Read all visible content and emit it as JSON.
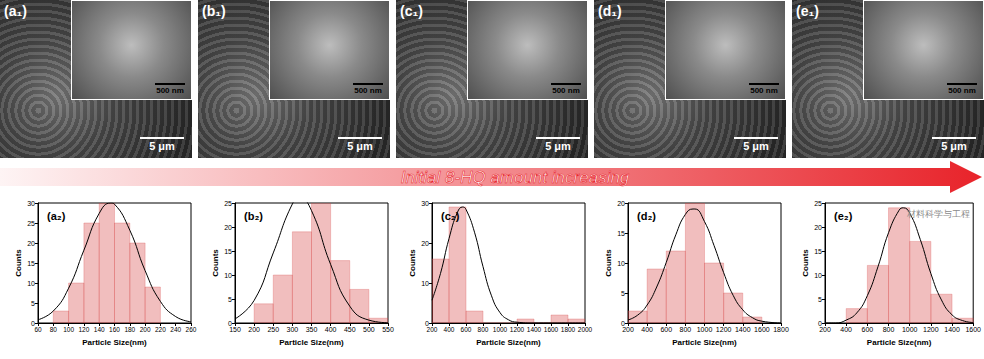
{
  "sem_images": [
    {
      "label": "(a₁)",
      "inset_scale_bar": "500 nm",
      "scale_bar": "5 μm"
    },
    {
      "label": "(b₁)",
      "inset_scale_bar": "500 nm",
      "scale_bar": "5 μm"
    },
    {
      "label": "(c₁)",
      "inset_scale_bar": "500 nm",
      "scale_bar": "5 μm"
    },
    {
      "label": "(d₁)",
      "inset_scale_bar": "500 nm",
      "scale_bar": "5 μm"
    },
    {
      "label": "(e₁)",
      "inset_scale_bar": "500 nm",
      "scale_bar": "5 μm"
    }
  ],
  "banner": {
    "text": "Initial 8-HQ amount increasing",
    "color": "#e8232a"
  },
  "watermark": "材料科学与工程",
  "chart_data": [
    {
      "type": "histogram",
      "title": "(a₂)",
      "x_label": "Particle Size(nm)",
      "y_label": "Counts",
      "bins": [
        80,
        100,
        120,
        140,
        160,
        180,
        200,
        220
      ],
      "counts": [
        3,
        10,
        25,
        30,
        25,
        20,
        9
      ],
      "color": "#d64545",
      "grid": false,
      "xlim": [
        60,
        260
      ],
      "xticks": [
        60,
        80,
        100,
        120,
        140,
        160,
        180,
        200,
        220,
        240,
        260
      ],
      "ylim": [
        0,
        30
      ],
      "yticks": [
        0,
        5,
        10,
        15,
        20,
        25,
        30
      ],
      "fit": {
        "color": "#000000",
        "x": [
          60,
          80,
          100,
          120,
          140,
          155,
          160,
          180,
          200,
          220,
          240,
          260
        ],
        "y": [
          0.8,
          3.0,
          8.7,
          18.2,
          27.4,
          30,
          29.7,
          23.2,
          13.1,
          5.4,
          1.6,
          0.3
        ]
      }
    },
    {
      "type": "histogram",
      "title": "(b₂)",
      "x_label": "Particle Size(nm)",
      "y_label": "Counts",
      "bins": [
        200,
        250,
        300,
        350,
        400,
        450,
        500,
        550
      ],
      "counts": [
        4,
        10,
        19,
        26,
        13,
        7,
        1
      ],
      "color": "#d64545",
      "grid": false,
      "xlim": [
        150,
        550
      ],
      "xticks": [
        150,
        200,
        250,
        300,
        350,
        400,
        450,
        500,
        550
      ],
      "ylim": [
        0,
        25
      ],
      "yticks": [
        0,
        5,
        10,
        15,
        20,
        25
      ],
      "fit": {
        "color": "#000000",
        "x": [
          150,
          200,
          250,
          300,
          320,
          350,
          400,
          450,
          500,
          550
        ],
        "y": [
          0.85,
          4.7,
          14.6,
          24.8,
          26,
          23.4,
          12.2,
          3.5,
          0.6,
          0.05
        ]
      }
    },
    {
      "type": "histogram",
      "title": "(c₂)",
      "x_label": "Particle Size(nm)",
      "y_label": "Counts",
      "bins": [
        200,
        400,
        600,
        800,
        1000,
        1200,
        1400,
        1600,
        1800,
        2000
      ],
      "counts": [
        16,
        29,
        3,
        0,
        0,
        1,
        0,
        2,
        1
      ],
      "color": "#d64545",
      "grid": false,
      "xlim": [
        200,
        2000
      ],
      "xticks": [
        200,
        400,
        600,
        800,
        1000,
        1200,
        1400,
        1600,
        1800,
        2000
      ],
      "ylim": [
        0,
        30
      ],
      "yticks": [
        0,
        10,
        20,
        30
      ],
      "fit": {
        "color": "#000000",
        "x": [
          200,
          300,
          400,
          500,
          560,
          600,
          700,
          800,
          900,
          1000,
          1100,
          1200,
          1400,
          2000
        ],
        "y": [
          5.7,
          12.4,
          21.1,
          27.7,
          29,
          28.4,
          22.7,
          14.1,
          6.8,
          2.6,
          0.8,
          0.2,
          0,
          0
        ]
      }
    },
    {
      "type": "histogram",
      "title": "(d₂)",
      "x_label": "Particle Size(nm)",
      "y_label": "Counts",
      "bins": [
        200,
        400,
        600,
        800,
        1000,
        1200,
        1400,
        1600
      ],
      "counts": [
        2,
        9,
        12,
        20,
        10,
        5,
        1
      ],
      "color": "#d64545",
      "grid": false,
      "xlim": [
        200,
        1800
      ],
      "xticks": [
        200,
        400,
        600,
        800,
        1000,
        1200,
        1400,
        1600,
        1800
      ],
      "ylim": [
        0,
        20
      ],
      "yticks": [
        0,
        5,
        10,
        15,
        20
      ],
      "fit": {
        "color": "#000000",
        "x": [
          200,
          300,
          400,
          500,
          600,
          700,
          800,
          880,
          900,
          1000,
          1100,
          1200,
          1300,
          1400,
          1500,
          1600,
          1800
        ],
        "y": [
          0.5,
          1.3,
          3.0,
          6.0,
          10.1,
          14.7,
          18.1,
          19,
          19.0,
          16.9,
          12.9,
          8.4,
          4.6,
          2.2,
          0.9,
          0.3,
          0
        ]
      }
    },
    {
      "type": "histogram",
      "title": "(e₂)",
      "x_label": "Particle Size(nm)",
      "y_label": "Counts",
      "bins": [
        400,
        600,
        800,
        1000,
        1200,
        1400,
        1600
      ],
      "counts": [
        3,
        12,
        24,
        17,
        6,
        1
      ],
      "color": "#d64545",
      "grid": false,
      "xlim": [
        200,
        1600
      ],
      "xticks": [
        200,
        400,
        600,
        800,
        1000,
        1200,
        1400,
        1600
      ],
      "ylim": [
        0,
        25
      ],
      "yticks": [
        0,
        5,
        10,
        15,
        20,
        25
      ],
      "fit": {
        "color": "#000000",
        "x": [
          200,
          300,
          400,
          500,
          600,
          700,
          800,
          900,
          940,
          1000,
          1100,
          1200,
          1300,
          1400,
          1500,
          1600
        ],
        "y": [
          0,
          0,
          0.6,
          2.1,
          5.7,
          11.7,
          18.8,
          23.5,
          24,
          22.9,
          17.4,
          10.3,
          4.8,
          1.7,
          0.5,
          0.1
        ]
      }
    }
  ]
}
